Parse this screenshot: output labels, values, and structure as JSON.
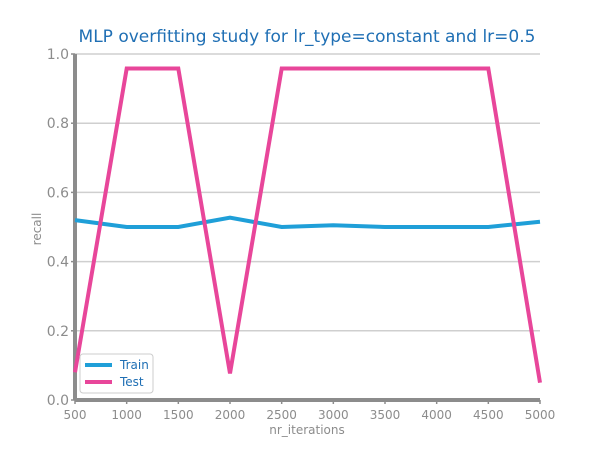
{
  "chart_data": {
    "type": "line",
    "title": "MLP overfitting study for lr_type=constant and lr=0.5",
    "xlabel": "nr_iterations",
    "ylabel": "recall",
    "x": [
      500,
      1000,
      1500,
      2000,
      2500,
      3000,
      3500,
      4000,
      4500,
      5000
    ],
    "xlim": [
      500,
      5000
    ],
    "ylim": [
      0.0,
      1.0
    ],
    "xticks": [
      "500",
      "1000",
      "1500",
      "2000",
      "2500",
      "3000",
      "3500",
      "4000",
      "4500",
      "5000"
    ],
    "yticks": [
      "0.0",
      "0.2",
      "0.4",
      "0.6",
      "0.8",
      "1.0"
    ],
    "grid": "horizontal",
    "legend_position": "lower-left",
    "series": [
      {
        "name": "Train",
        "color": "#1f9fd8",
        "values": [
          0.52,
          0.5,
          0.5,
          0.527,
          0.5,
          0.505,
          0.5,
          0.5,
          0.5,
          0.515
        ]
      },
      {
        "name": "Test",
        "color": "#e8469a",
        "values": [
          0.08,
          0.958,
          0.958,
          0.077,
          0.958,
          0.958,
          0.958,
          0.958,
          0.958,
          0.05
        ]
      }
    ]
  }
}
